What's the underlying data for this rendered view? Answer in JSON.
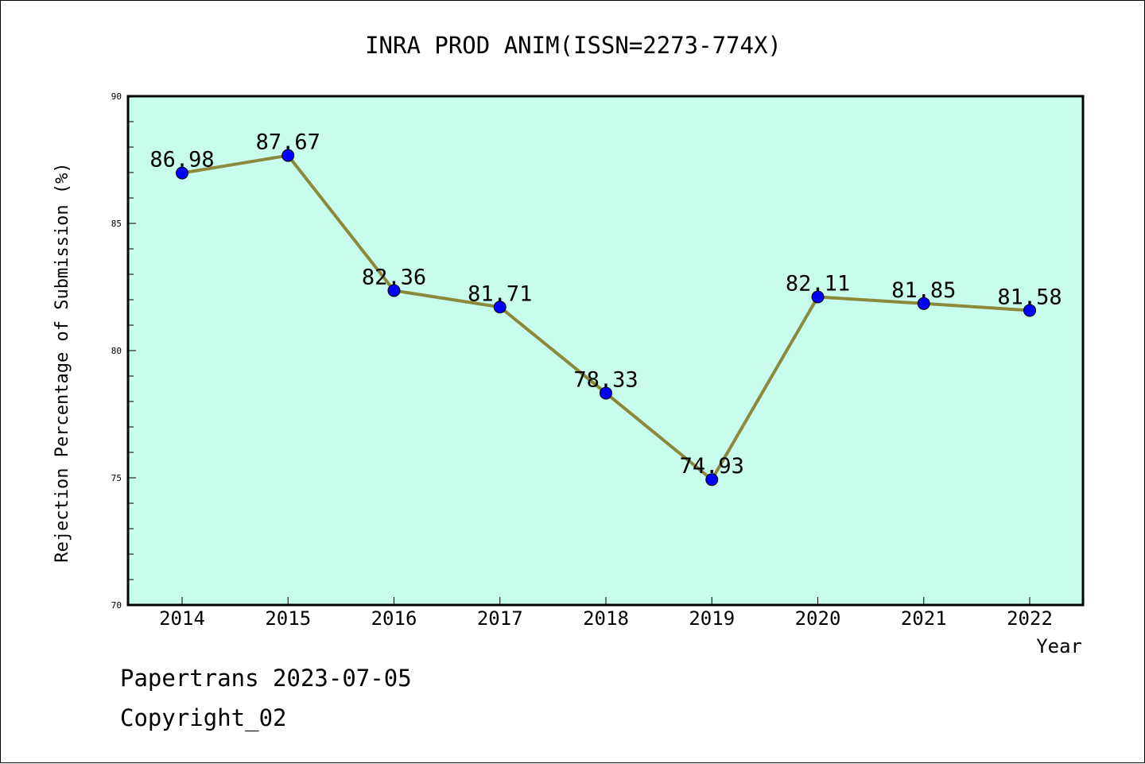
{
  "chart_data": {
    "type": "line",
    "title": "INRA PROD ANIM(ISSN=2273-774X)",
    "xlabel": "Year",
    "ylabel": "Rejection Percentage of Submission (%)",
    "categories": [
      "2014",
      "2015",
      "2016",
      "2017",
      "2018",
      "2019",
      "2020",
      "2021",
      "2022"
    ],
    "values": [
      86.98,
      87.67,
      82.36,
      81.71,
      78.33,
      74.93,
      82.11,
      81.85,
      81.58
    ],
    "value_labels": [
      "86.98",
      "87.67",
      "82.36",
      "81.71",
      "78.33",
      "74.93",
      "82.11",
      "81.85",
      "81.58"
    ],
    "ylim": [
      70,
      90
    ],
    "yticks": [
      "70",
      "75",
      "80",
      "85",
      "90"
    ],
    "grid": false,
    "colors": {
      "plot_background": "#c8fcec",
      "line": "#8b8a3a",
      "marker": "#0000ff"
    }
  },
  "footer": {
    "line1": "Papertrans 2023-07-05",
    "line2": "Copyright_02"
  }
}
